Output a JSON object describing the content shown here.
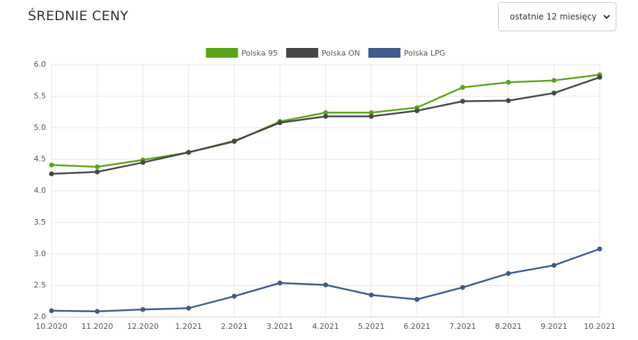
{
  "header": {
    "title": "ŚREDNIE CENY",
    "range_select": "ostatnie 12 miesięcy"
  },
  "chart_data": {
    "type": "line",
    "categories": [
      "10.2020",
      "11.2020",
      "12.2020",
      "1.2021",
      "2.2021",
      "3.2021",
      "4.2021",
      "5.2021",
      "6.2021",
      "7.2021",
      "8.2021",
      "9.2021",
      "10.2021"
    ],
    "series": [
      {
        "name": "Polska 95",
        "color": "#5ba41a",
        "values": [
          4.41,
          4.38,
          4.49,
          4.61,
          4.78,
          5.1,
          5.24,
          5.24,
          5.32,
          5.64,
          5.72,
          5.75,
          5.84
        ]
      },
      {
        "name": "Polska ON",
        "color": "#464646",
        "values": [
          4.27,
          4.3,
          4.45,
          4.61,
          4.79,
          5.08,
          5.18,
          5.18,
          5.27,
          5.42,
          5.43,
          5.55,
          5.8
        ]
      },
      {
        "name": "Polska LPG",
        "color": "#3e5b8b",
        "values": [
          2.1,
          2.09,
          2.12,
          2.14,
          2.33,
          2.54,
          2.51,
          2.35,
          2.28,
          2.47,
          2.69,
          2.82,
          3.08
        ]
      }
    ],
    "ylim": [
      2,
      6
    ],
    "yticks": [
      {
        "value": 2,
        "label": "2.0"
      },
      {
        "value": 2.5,
        "label": "2.5"
      },
      {
        "value": 3,
        "label": "3.0"
      },
      {
        "value": 3.5,
        "label": "3.5"
      },
      {
        "value": 4,
        "label": "4.0"
      },
      {
        "value": 4.5,
        "label": "4.5"
      },
      {
        "value": 5,
        "label": "5.0"
      },
      {
        "value": 5.5,
        "label": "5.5"
      },
      {
        "value": 6,
        "label": "6.0"
      }
    ],
    "grid": true,
    "legend": "top"
  }
}
